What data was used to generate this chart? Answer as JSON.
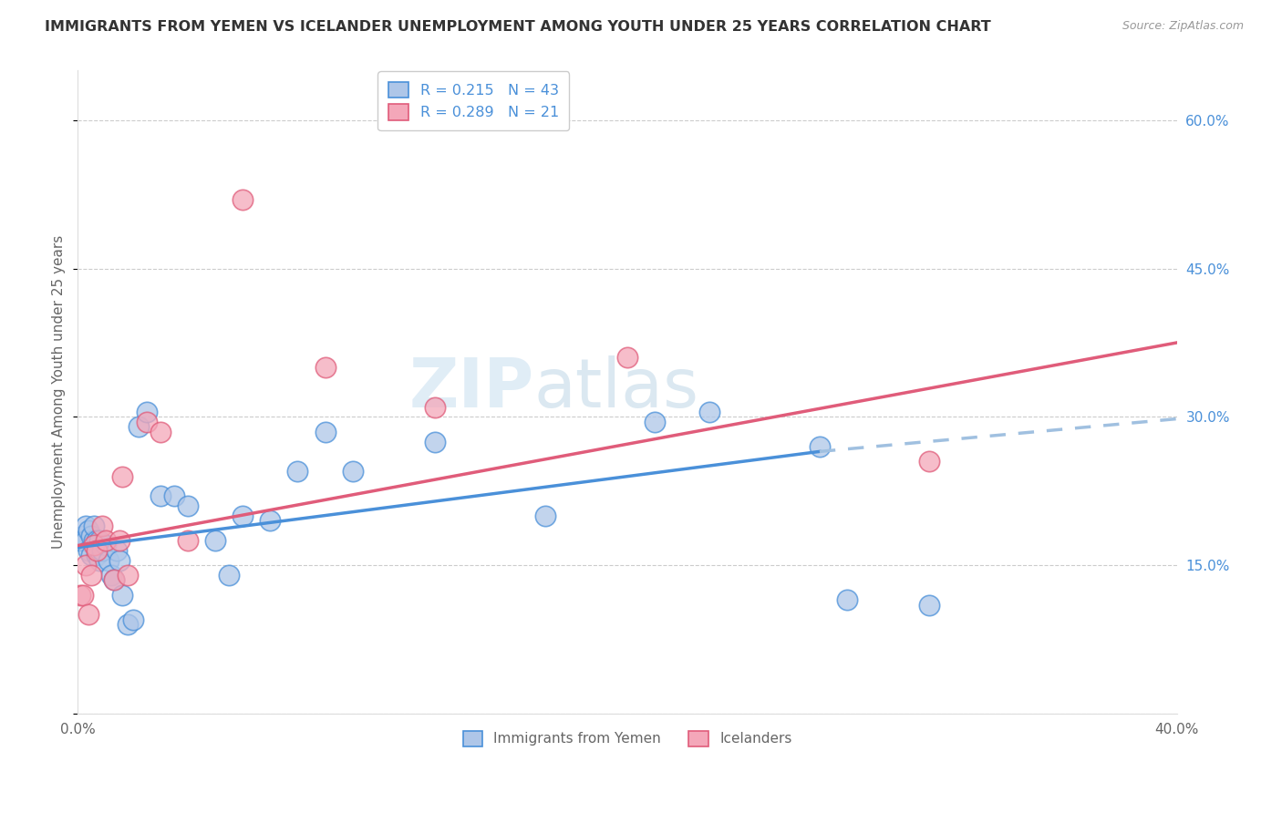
{
  "title": "IMMIGRANTS FROM YEMEN VS ICELANDER UNEMPLOYMENT AMONG YOUTH UNDER 25 YEARS CORRELATION CHART",
  "source": "Source: ZipAtlas.com",
  "ylabel": "Unemployment Among Youth under 25 years",
  "xlim": [
    0.0,
    0.4
  ],
  "ylim": [
    0.0,
    0.65
  ],
  "y_tick_positions": [
    0.0,
    0.15,
    0.3,
    0.45,
    0.6
  ],
  "y_tick_labels": [
    "",
    "15.0%",
    "30.0%",
    "45.0%",
    "60.0%"
  ],
  "r_blue": 0.215,
  "n_blue": 43,
  "r_pink": 0.289,
  "n_pink": 21,
  "legend_label_blue": "Immigrants from Yemen",
  "legend_label_pink": "Icelanders",
  "color_blue": "#aec6e8",
  "color_pink": "#f4a7b9",
  "line_color_blue": "#4a90d9",
  "line_color_pink": "#e05c7a",
  "line_color_blue_dash": "#a0c0e0",
  "watermark_zip": "ZIP",
  "watermark_atlas": "atlas",
  "blue_line_x0": 0.0,
  "blue_line_y0": 0.168,
  "blue_line_x1": 0.27,
  "blue_line_y1": 0.265,
  "blue_line_x2": 0.4,
  "blue_line_y2": 0.298,
  "pink_line_x0": 0.0,
  "pink_line_y0": 0.17,
  "pink_line_x1": 0.4,
  "pink_line_y1": 0.375,
  "blue_x": [
    0.001,
    0.002,
    0.003,
    0.003,
    0.004,
    0.004,
    0.005,
    0.005,
    0.006,
    0.006,
    0.007,
    0.007,
    0.008,
    0.008,
    0.009,
    0.01,
    0.011,
    0.012,
    0.013,
    0.014,
    0.015,
    0.016,
    0.018,
    0.02,
    0.022,
    0.025,
    0.03,
    0.035,
    0.04,
    0.05,
    0.055,
    0.06,
    0.07,
    0.08,
    0.09,
    0.1,
    0.13,
    0.17,
    0.21,
    0.23,
    0.27,
    0.28,
    0.31
  ],
  "blue_y": [
    0.175,
    0.18,
    0.19,
    0.175,
    0.185,
    0.165,
    0.18,
    0.16,
    0.175,
    0.19,
    0.175,
    0.16,
    0.175,
    0.155,
    0.165,
    0.17,
    0.155,
    0.14,
    0.135,
    0.165,
    0.155,
    0.12,
    0.09,
    0.095,
    0.29,
    0.305,
    0.22,
    0.22,
    0.21,
    0.175,
    0.14,
    0.2,
    0.195,
    0.245,
    0.285,
    0.245,
    0.275,
    0.2,
    0.295,
    0.305,
    0.27,
    0.115,
    0.11
  ],
  "pink_x": [
    0.001,
    0.002,
    0.003,
    0.004,
    0.005,
    0.006,
    0.007,
    0.009,
    0.01,
    0.013,
    0.015,
    0.016,
    0.018,
    0.025,
    0.03,
    0.04,
    0.06,
    0.09,
    0.13,
    0.2,
    0.31
  ],
  "pink_y": [
    0.12,
    0.12,
    0.15,
    0.1,
    0.14,
    0.17,
    0.165,
    0.19,
    0.175,
    0.135,
    0.175,
    0.24,
    0.14,
    0.295,
    0.285,
    0.175,
    0.52,
    0.35,
    0.31,
    0.36,
    0.255
  ]
}
